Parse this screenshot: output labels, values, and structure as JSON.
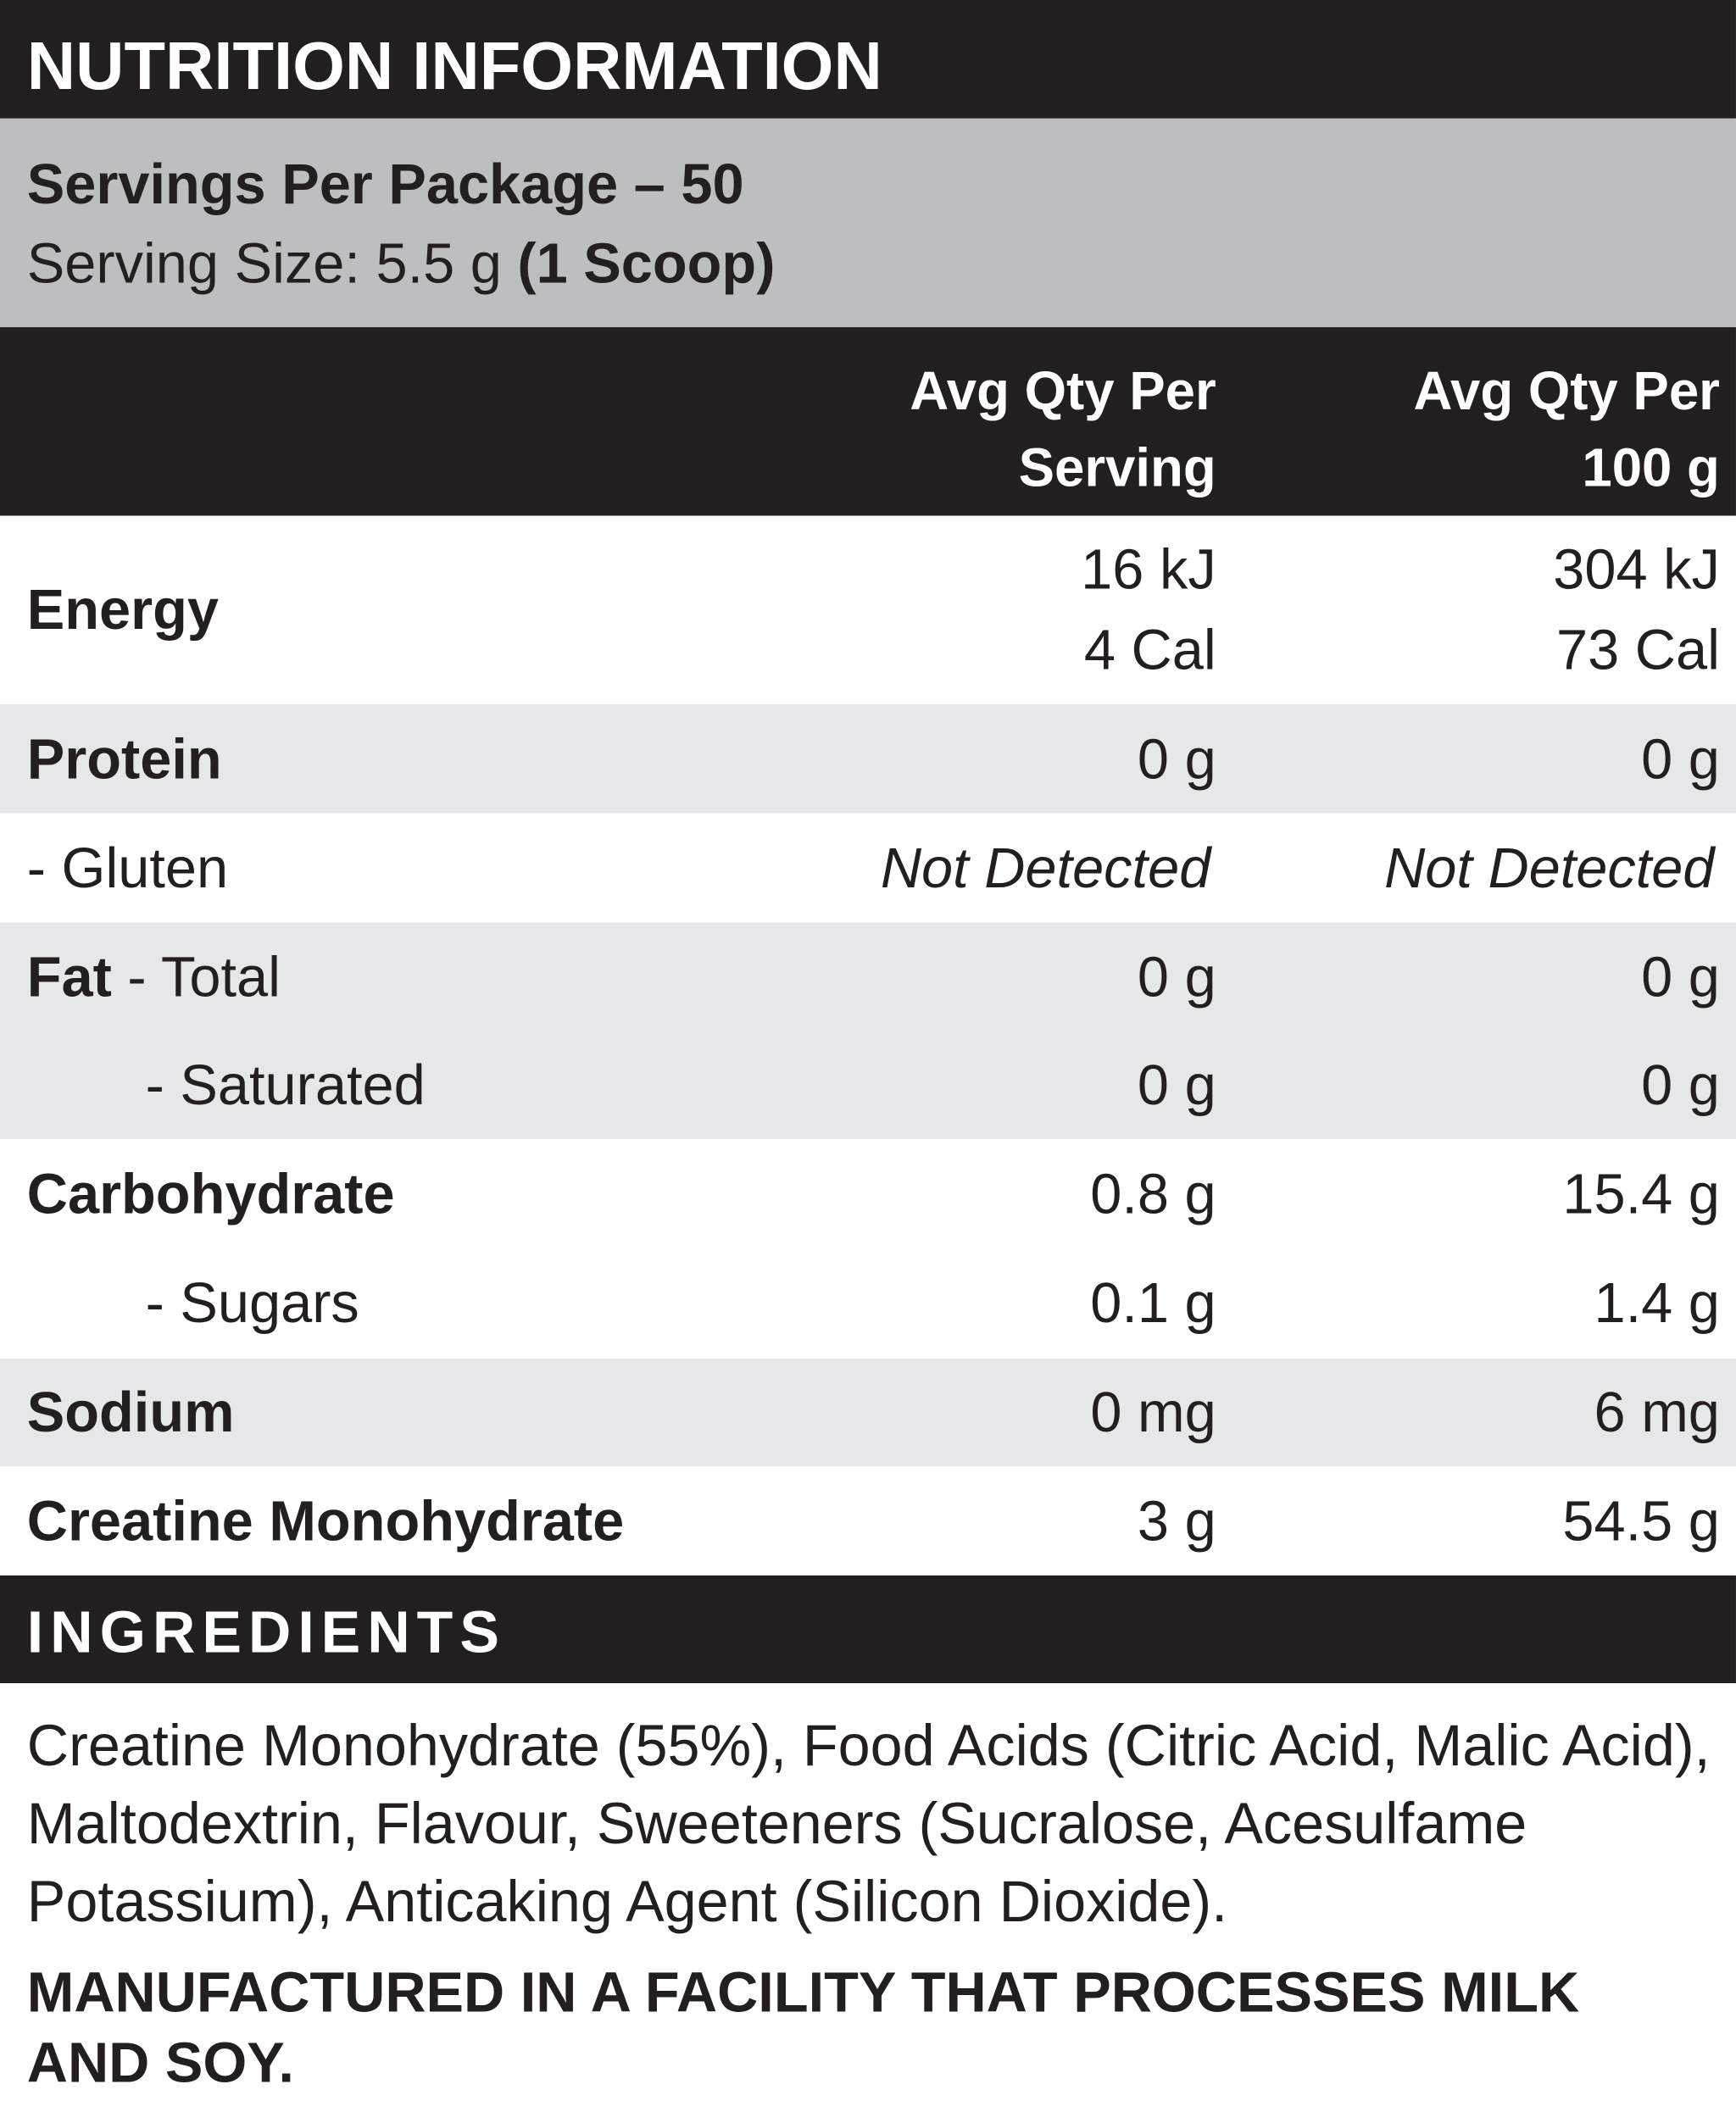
{
  "title": "NUTRITION INFORMATION",
  "servings": {
    "per_package": "Servings Per Package – 50",
    "serving_size": "Serving Size: 5.5 g",
    "serving_size_note": "(1 Scoop)"
  },
  "table": {
    "columns": [
      [
        "Avg Qty Per",
        "Serving"
      ],
      [
        "Avg Qty Per",
        "100 g"
      ]
    ],
    "rows": [
      {
        "label": "Energy",
        "serving": [
          "16 kJ",
          "4 Cal"
        ],
        "per_100g": [
          "304 kJ",
          "73 Cal"
        ]
      },
      {
        "label": "Protein",
        "serving": "0 g",
        "per_100g": "0 g"
      },
      {
        "label": "- Gluten",
        "serving": "Not Detected",
        "per_100g": "Not Detected"
      },
      {
        "label": "Fat",
        "sublabel": "- Total",
        "serving": "0 g",
        "per_100g": "0 g"
      },
      {
        "label": "- Saturated",
        "serving": "0 g",
        "per_100g": "0 g"
      },
      {
        "label": "Carbohydrate",
        "serving": "0.8 g",
        "per_100g": "15.4 g"
      },
      {
        "label": "- Sugars",
        "serving": "0.1 g",
        "per_100g": "1.4 g"
      },
      {
        "label": "Sodium",
        "serving": "0 mg",
        "per_100g": "6 mg"
      },
      {
        "label": "Creatine Monohydrate",
        "serving": "3 g",
        "per_100g": "54.5 g"
      }
    ]
  },
  "ingredients": {
    "title": "INGREDIENTS",
    "text": "Creatine Monohydrate (55%), Food Acids (Citric Acid, Malic Acid), Maltodextrin, Flavour,  Sweeteners (Sucralose, Acesulfame Potassium), Anticaking Agent (Silicon Dioxide).",
    "warning": "MANUFACTURED IN A FACILITY THAT PROCESSES MILK AND SOY."
  }
}
